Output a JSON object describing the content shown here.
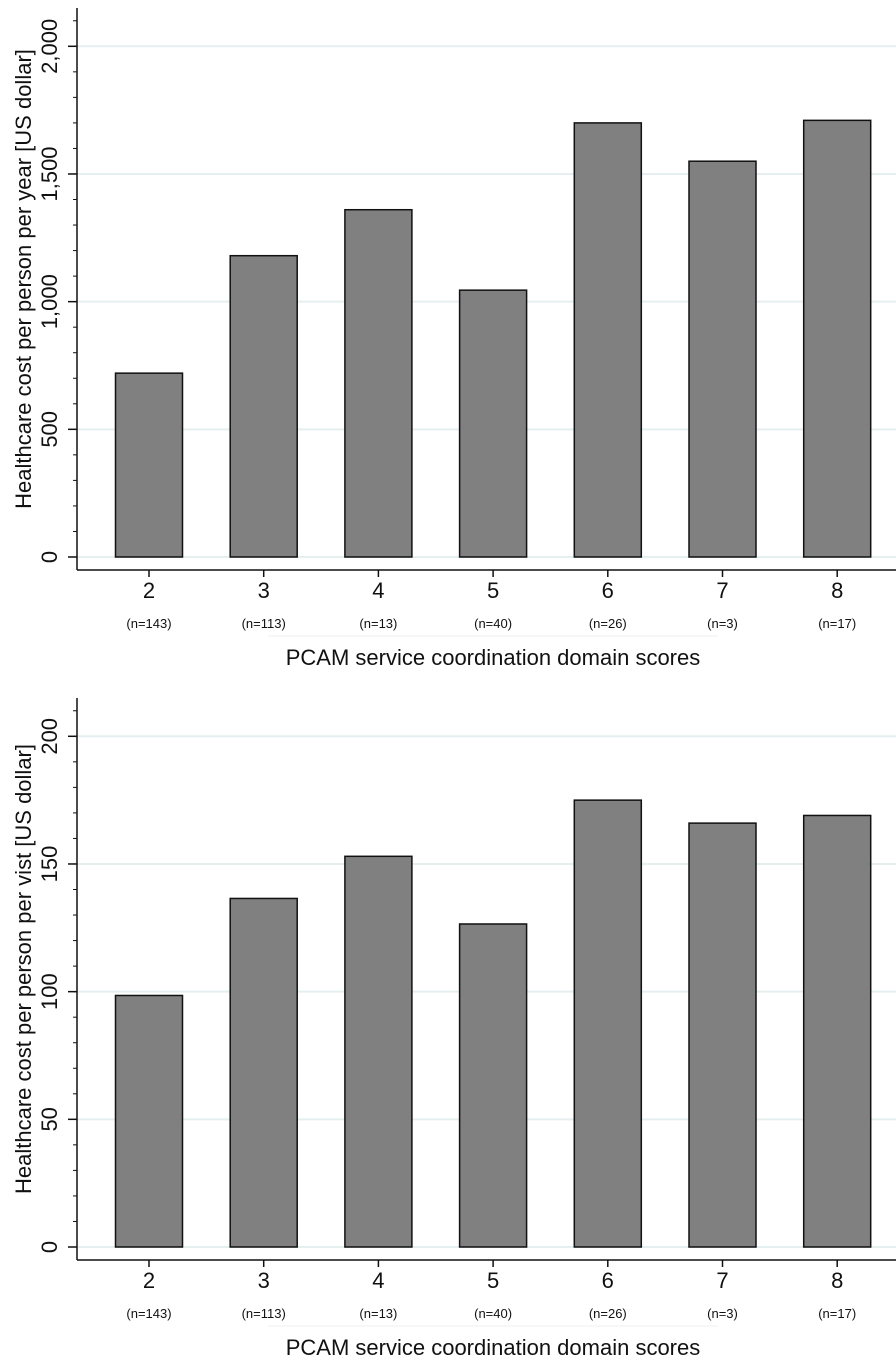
{
  "chart_data": [
    {
      "type": "bar",
      "categories": [
        "2",
        "3",
        "4",
        "5",
        "6",
        "7",
        "8"
      ],
      "sample_sizes": [
        "(n=143)",
        "(n=113)",
        "(n=13)",
        "(n=40)",
        "(n=26)",
        "(n=3)",
        "(n=17)"
      ],
      "values": [
        720,
        1180,
        1360,
        1045,
        1700,
        1550,
        1710
      ],
      "xlabel": "PCAM service coordination domain scores",
      "ylabel": "Healthcare cost per person per year [US dollar]",
      "ylim": [
        0,
        2150
      ],
      "yticks": [
        0,
        500,
        1000,
        1500,
        2000
      ],
      "ytick_labels": [
        "0",
        "500",
        "1,000",
        "1,500",
        "2,000"
      ],
      "minor_tick_step": 100,
      "grid": true,
      "bar_color": "#808080",
      "grid_color": "#e6efef"
    },
    {
      "type": "bar",
      "categories": [
        "2",
        "3",
        "4",
        "5",
        "6",
        "7",
        "8"
      ],
      "sample_sizes": [
        "(n=143)",
        "(n=113)",
        "(n=13)",
        "(n=40)",
        "(n=26)",
        "(n=3)",
        "(n=17)"
      ],
      "values": [
        98.5,
        136.5,
        153,
        126.5,
        175,
        166,
        169
      ],
      "xlabel": "PCAM service coordination domain scores",
      "ylabel": "Healthcare cost per person per vist [US dollar]",
      "ylim": [
        0,
        215
      ],
      "yticks": [
        0,
        50,
        100,
        150,
        200
      ],
      "ytick_labels": [
        "0",
        "50",
        "100",
        "150",
        "200"
      ],
      "minor_tick_step": 10,
      "grid": true,
      "bar_color": "#808080",
      "grid_color": "#e6efef"
    }
  ]
}
